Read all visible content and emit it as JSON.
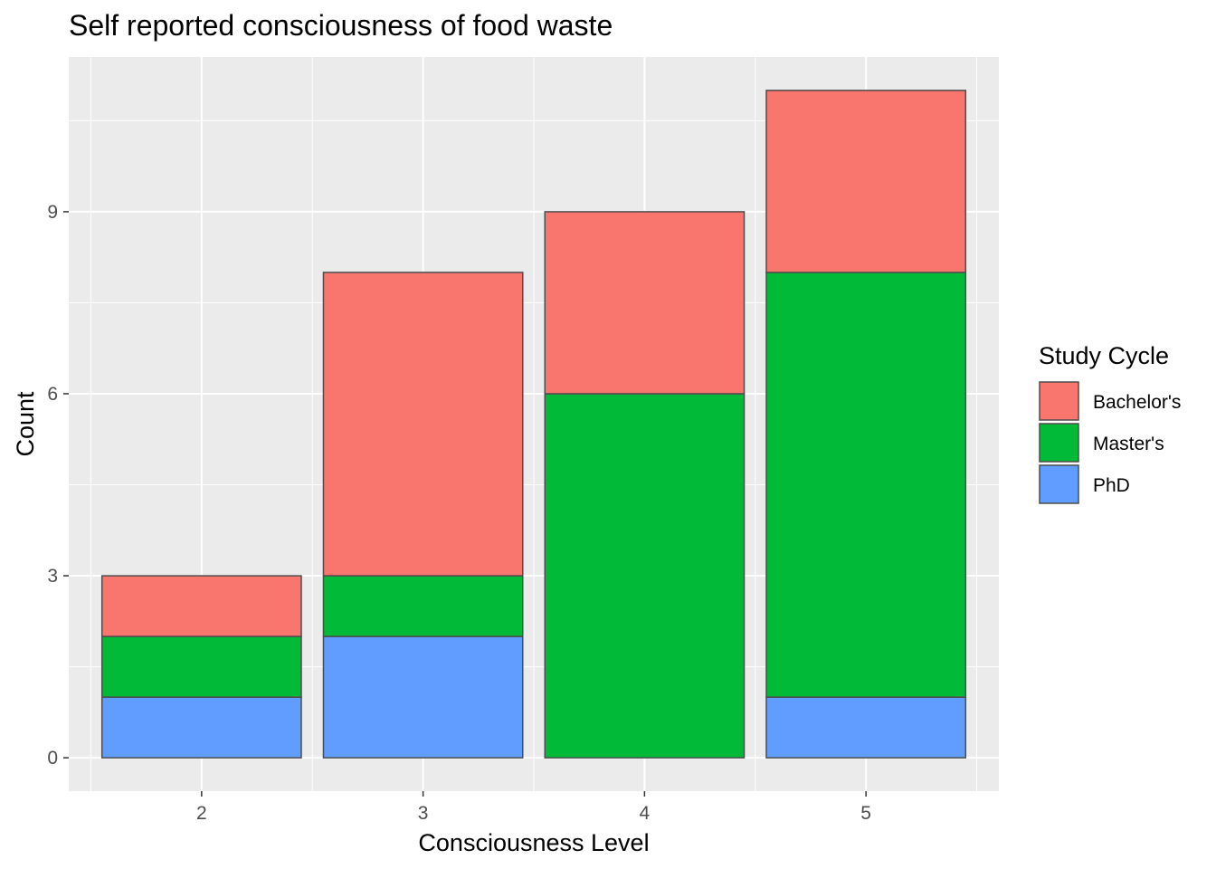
{
  "chart_data": {
    "type": "bar",
    "stacked": true,
    "title": "Self reported consciousness of food waste",
    "xlabel": "Consciousness Level",
    "ylabel": "Count",
    "categories": [
      "2",
      "3",
      "4",
      "5"
    ],
    "series": [
      {
        "name": "Bachelor's",
        "values": [
          1,
          5,
          3,
          3
        ],
        "color": "#F8766D"
      },
      {
        "name": "Master's",
        "values": [
          1,
          1,
          6,
          7
        ],
        "color": "#00BA38"
      },
      {
        "name": "PhD",
        "values": [
          1,
          2,
          0,
          1
        ],
        "color": "#619CFF"
      }
    ],
    "stack_order_bottom_to_top": [
      "PhD",
      "Master's",
      "Bachelor's"
    ],
    "y_ticks": [
      0,
      3,
      6,
      9
    ],
    "ylim": [
      -0.55,
      11.55
    ],
    "grid": true,
    "panel_background": "#EBEBEB",
    "bar_outline": "#4d4d4d",
    "legend": {
      "title": "Study Cycle",
      "position": "right"
    }
  }
}
